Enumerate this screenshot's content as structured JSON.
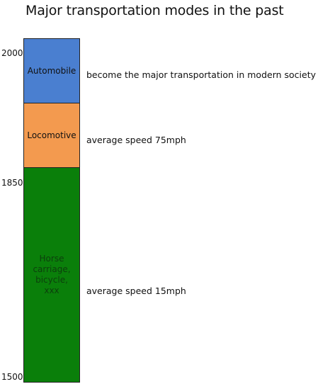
{
  "title": "Major transportation modes in the past",
  "axis": {
    "labels": [
      "2000",
      "1850",
      "1500"
    ]
  },
  "segments": [
    {
      "label": "Automobile",
      "color": "#4a7fd0",
      "text_color": "#111111",
      "description": "become the major transportation in modern society"
    },
    {
      "label": "Locomotive",
      "color": "#f39a4f",
      "text_color": "#111111",
      "description": "average speed 75mph"
    },
    {
      "label": "Horse carriage, bicycle, xxx",
      "color": "#0a7f0a",
      "text_color": "#0d3f0d",
      "description": "average speed 15mph"
    }
  ]
}
